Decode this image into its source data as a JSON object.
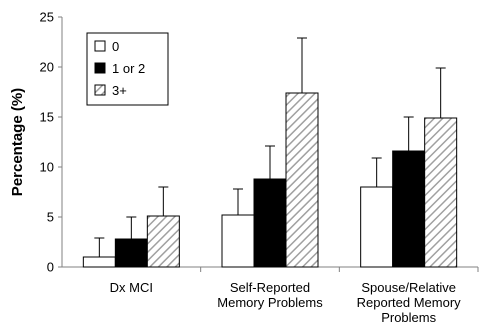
{
  "chart_data": {
    "type": "bar",
    "ylabel": "Percentage (%)",
    "xlabel": "",
    "ylim": [
      0,
      25
    ],
    "yticks": [
      0,
      5,
      10,
      15,
      20,
      25
    ],
    "grid": false,
    "legend_position": "top-left",
    "categories": [
      [
        "Dx MCI"
      ],
      [
        "Self-Reported",
        "Memory Problems"
      ],
      [
        "Spouse/Relative",
        "Reported Memory",
        "Problems"
      ]
    ],
    "series": [
      {
        "name": "0",
        "fill": "white",
        "values": [
          1.0,
          5.2,
          8.0
        ],
        "error_upper": [
          2.9,
          7.8,
          10.9
        ]
      },
      {
        "name": "1 or 2",
        "fill": "black",
        "values": [
          2.8,
          8.8,
          11.6
        ],
        "error_upper": [
          5.0,
          12.1,
          15.0
        ]
      },
      {
        "name": "3+",
        "fill": "hatched",
        "values": [
          5.1,
          17.4,
          14.9
        ],
        "error_upper": [
          8.0,
          22.9,
          19.9
        ]
      }
    ],
    "colors": {
      "black": "#000000",
      "white": "#ffffff",
      "hatch": "#a0a0a0"
    }
  }
}
